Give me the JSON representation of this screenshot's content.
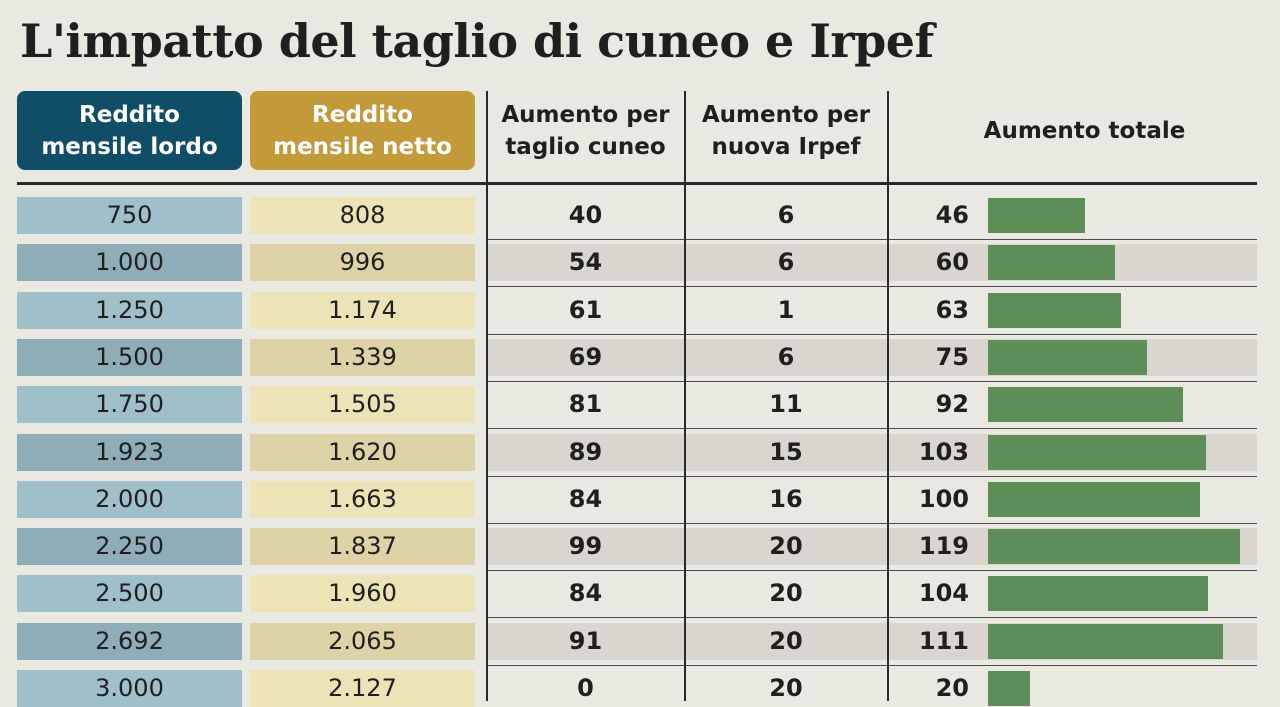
{
  "title": "L'impatto del taglio di cuneo e Irpef",
  "headers": {
    "lordo": [
      "Reddito",
      "mensile lordo"
    ],
    "netto": [
      "Reddito",
      "mensile netto"
    ],
    "cuneo": [
      "Aumento per",
      "taglio cuneo"
    ],
    "irpef": [
      "Aumento per",
      "nuova Irpef"
    ],
    "totale": "Aumento totale"
  },
  "colors": {
    "lordo_header": "#0f4e66",
    "netto_header": "#c29a3a",
    "lordo_cell_light": "#9fbfcb",
    "lordo_cell_dark": "#8eadb8",
    "netto_cell_light": "#ece4b6",
    "netto_cell_dark": "#ddd3a7",
    "row_band": "#d8d6ce",
    "bar": "#5e8e58"
  },
  "chart_data": {
    "type": "table",
    "columns": [
      "Reddito mensile lordo",
      "Reddito mensile netto",
      "Aumento per taglio cuneo",
      "Aumento per nuova Irpef",
      "Aumento totale"
    ],
    "rows": [
      [
        "750",
        "808",
        "40",
        "6",
        "46"
      ],
      [
        "1.000",
        "996",
        "54",
        "6",
        "60"
      ],
      [
        "1.250",
        "1.174",
        "61",
        "1",
        "63"
      ],
      [
        "1.500",
        "1.339",
        "69",
        "6",
        "75"
      ],
      [
        "1.750",
        "1.505",
        "81",
        "11",
        "92"
      ],
      [
        "1.923",
        "1.620",
        "89",
        "15",
        "103"
      ],
      [
        "2.000",
        "1.663",
        "84",
        "16",
        "100"
      ],
      [
        "2.250",
        "1.837",
        "99",
        "20",
        "119"
      ],
      [
        "2.500",
        "1.960",
        "84",
        "20",
        "104"
      ],
      [
        "2.692",
        "2.065",
        "91",
        "20",
        "111"
      ],
      [
        "3.000",
        "2.127",
        "0",
        "20",
        "20"
      ]
    ],
    "bar_values": [
      46,
      60,
      63,
      75,
      92,
      103,
      100,
      119,
      104,
      111,
      20
    ],
    "bar_max": 119
  }
}
